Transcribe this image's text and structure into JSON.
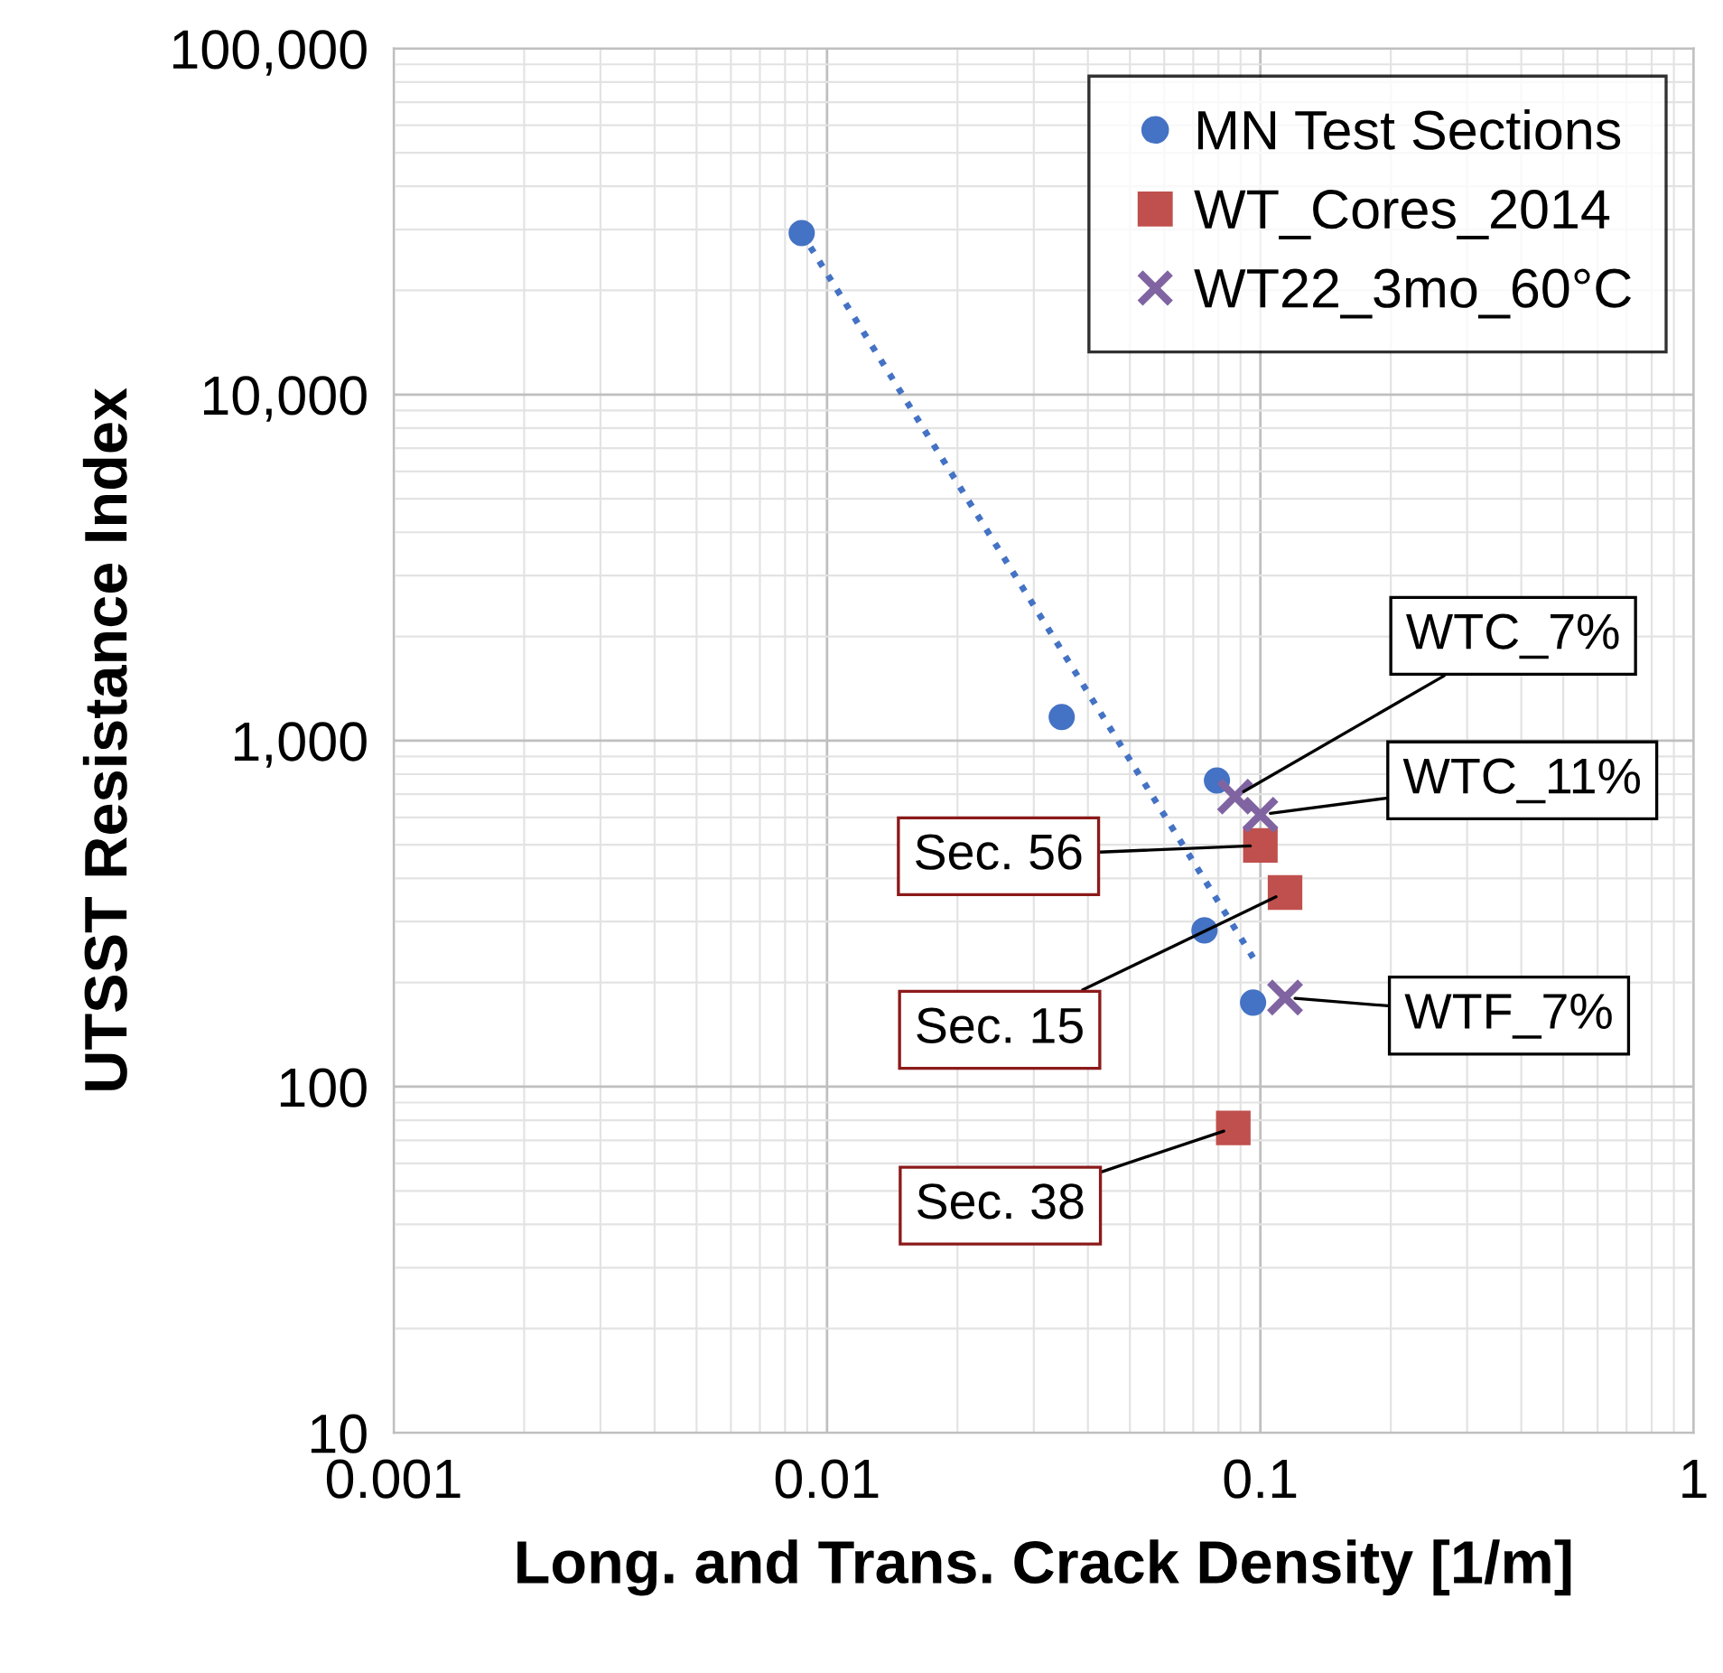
{
  "chart_data": {
    "type": "scatter",
    "xlabel": "Long. and Trans. Crack Density [1/m]",
    "ylabel": "UTSST Resistance Index",
    "log": "xy",
    "grid": true,
    "legend": "top right",
    "xlim": [
      0.001,
      1
    ],
    "xticks": [
      0.001,
      0.01,
      0.1,
      1
    ],
    "ylim": [
      10,
      100000
    ],
    "yticks": [
      10,
      100,
      {
        "value": 1000,
        "label": "1,000"
      },
      {
        "value": 10000,
        "label": "10,000"
      },
      {
        "value": 100000,
        "label": "100,000"
      }
    ],
    "series": [
      {
        "name": "MN Test Sections",
        "color": "#4472c4",
        "marker": "circle",
        "x": [
          0.00874,
          0.0348,
          0.0794,
          0.0743,
          0.0962
        ],
        "values": [
          29300,
          1170,
          767,
          283,
          175
        ]
      },
      {
        "name": "WT_Cores_2014",
        "color": "#c0504d",
        "marker": "square",
        "x": [
          0.1,
          0.114,
          0.0866
        ],
        "values": [
          498,
          364,
          76
        ]
      },
      {
        "name": "WT22_3mo_60°C",
        "color": "#8064a2",
        "marker": "cross",
        "x": [
          0.0874,
          0.1,
          0.114
        ],
        "values": [
          689,
          611,
          181
        ]
      },
      {
        "type": "line",
        "color": "#4472c4",
        "line_style": "dotted",
        "marker": "none",
        "x": [
          0.00874,
          0.0962
        ],
        "values": [
          29300,
          236
        ]
      }
    ],
    "annotations": [
      {
        "text": "WTC_7%",
        "x": 0.0874,
        "y": 689
      },
      {
        "text": "WTC_11%",
        "x": 0.1,
        "y": 611
      },
      {
        "text": "WTF_7%",
        "x": 0.114,
        "y": 181
      },
      {
        "text": "Sec. 56",
        "x": 0.1,
        "y": 498
      },
      {
        "text": "Sec. 15",
        "x": 0.114,
        "y": 364
      },
      {
        "text": "Sec. 38",
        "x": 0.0866,
        "y": 76
      }
    ]
  }
}
